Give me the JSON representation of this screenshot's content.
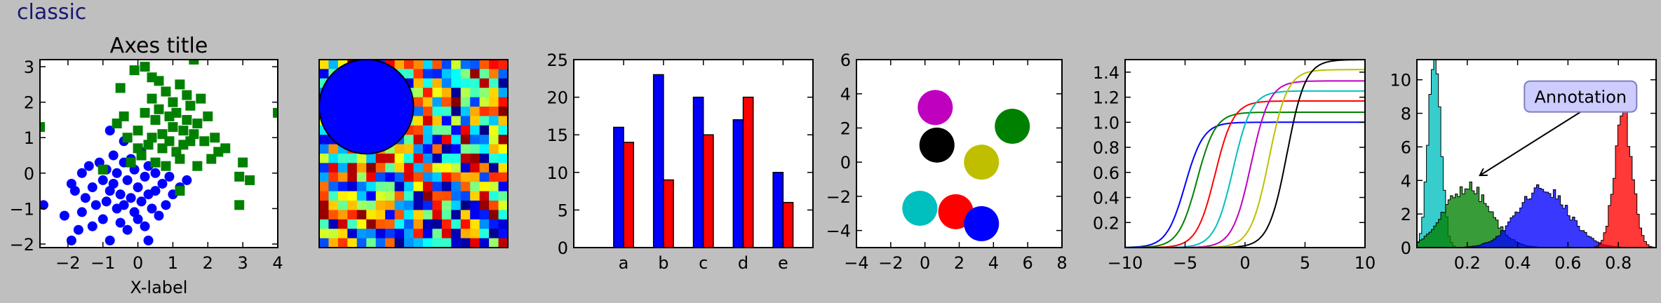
{
  "figure": {
    "title": "classic",
    "background": "#bfbfbf",
    "title_color": "#191970"
  },
  "chart_data": [
    {
      "type": "scatter",
      "title": "Axes title",
      "xlabel": "X-label",
      "ylabel": "",
      "xlim": [
        -2.8,
        4.0
      ],
      "ylim": [
        -2.1,
        3.2
      ],
      "xticks": [
        -2,
        -1,
        0,
        1,
        2,
        3,
        4
      ],
      "yticks": [
        -2,
        -1,
        0,
        1,
        2,
        3
      ],
      "series": [
        {
          "marker": "circle",
          "color": "#0000ff",
          "points": [
            [
              -2.7,
              -0.9
            ],
            [
              -2.1,
              -1.2
            ],
            [
              -1.9,
              -0.3
            ],
            [
              -1.8,
              -0.5
            ],
            [
              -1.7,
              -1.6
            ],
            [
              -1.6,
              -1.1
            ],
            [
              -1.5,
              -0.7
            ],
            [
              -1.4,
              0.2
            ],
            [
              -1.3,
              -0.4
            ],
            [
              -1.3,
              -1.5
            ],
            [
              -1.2,
              -0.9
            ],
            [
              -1.1,
              0.3
            ],
            [
              -1.0,
              -0.2
            ],
            [
              -1.0,
              -1.3
            ],
            [
              -0.9,
              0.1
            ],
            [
              -0.9,
              -0.8
            ],
            [
              -0.8,
              -0.5
            ],
            [
              -0.8,
              -1.9
            ],
            [
              -0.7,
              0.5
            ],
            [
              -0.7,
              -0.3
            ],
            [
              -0.6,
              -1.0
            ],
            [
              -0.6,
              0.0
            ],
            [
              -0.5,
              -0.6
            ],
            [
              -0.5,
              -1.4
            ],
            [
              -0.4,
              0.3
            ],
            [
              -0.4,
              -0.9
            ],
            [
              -0.3,
              -0.2
            ],
            [
              -0.3,
              -1.6
            ],
            [
              -0.2,
              0.4
            ],
            [
              -0.2,
              -0.7
            ],
            [
              -0.1,
              -1.1
            ],
            [
              -0.1,
              0.1
            ],
            [
              0.0,
              -0.4
            ],
            [
              0.0,
              -1.3
            ],
            [
              0.1,
              0.6
            ],
            [
              0.1,
              -0.8
            ],
            [
              0.2,
              -0.1
            ],
            [
              0.2,
              -1.5
            ],
            [
              0.3,
              0.2
            ],
            [
              0.3,
              -0.6
            ],
            [
              0.4,
              -1.0
            ],
            [
              0.5,
              0.0
            ],
            [
              0.5,
              -0.5
            ],
            [
              0.6,
              -1.2
            ],
            [
              0.7,
              -0.3
            ],
            [
              0.8,
              -0.9
            ],
            [
              0.9,
              -0.1
            ],
            [
              1.0,
              -0.6
            ],
            [
              1.2,
              -0.4
            ],
            [
              1.4,
              -0.2
            ],
            [
              -1.6,
              0.0
            ],
            [
              -0.8,
              1.2
            ],
            [
              -0.4,
              0.9
            ],
            [
              -1.9,
              -1.9
            ],
            [
              0.3,
              -1.9
            ]
          ]
        },
        {
          "marker": "square",
          "color": "#008000",
          "points": [
            [
              -2.8,
              1.3
            ],
            [
              -1.0,
              0.1
            ],
            [
              -0.6,
              1.4
            ],
            [
              -0.5,
              2.4
            ],
            [
              -0.3,
              1.0
            ],
            [
              -0.2,
              0.3
            ],
            [
              -0.1,
              2.9
            ],
            [
              0.0,
              1.2
            ],
            [
              0.1,
              0.5
            ],
            [
              0.2,
              3.0
            ],
            [
              0.2,
              1.7
            ],
            [
              0.3,
              0.8
            ],
            [
              0.4,
              2.1
            ],
            [
              0.4,
              1.0
            ],
            [
              0.5,
              1.5
            ],
            [
              0.5,
              0.3
            ],
            [
              0.6,
              2.6
            ],
            [
              0.6,
              1.8
            ],
            [
              0.7,
              0.7
            ],
            [
              0.7,
              1.1
            ],
            [
              0.8,
              2.3
            ],
            [
              0.8,
              0.2
            ],
            [
              0.9,
              1.6
            ],
            [
              0.9,
              0.9
            ],
            [
              1.0,
              2.0
            ],
            [
              1.0,
              1.3
            ],
            [
              1.1,
              0.6
            ],
            [
              1.1,
              1.7
            ],
            [
              1.2,
              2.5
            ],
            [
              1.2,
              0.4
            ],
            [
              1.3,
              1.2
            ],
            [
              1.3,
              0.8
            ],
            [
              1.4,
              2.2
            ],
            [
              1.4,
              1.5
            ],
            [
              1.5,
              0.9
            ],
            [
              1.5,
              1.9
            ],
            [
              1.6,
              1.1
            ],
            [
              1.7,
              1.4
            ],
            [
              1.7,
              0.2
            ],
            [
              1.8,
              2.1
            ],
            [
              1.9,
              0.9
            ],
            [
              2.0,
              1.6
            ],
            [
              2.1,
              0.4
            ],
            [
              2.2,
              1.0
            ],
            [
              2.3,
              0.6
            ],
            [
              2.5,
              0.7
            ],
            [
              2.9,
              -0.1
            ],
            [
              3.0,
              0.3
            ],
            [
              3.2,
              -0.2
            ],
            [
              2.9,
              -0.9
            ],
            [
              4.0,
              1.7
            ],
            [
              1.6,
              3.2
            ],
            [
              0.4,
              2.7
            ],
            [
              -0.4,
              1.6
            ],
            [
              1.2,
              -0.5
            ],
            [
              0.0,
              0.7
            ]
          ]
        }
      ]
    },
    {
      "type": "heatmap",
      "rows": 20,
      "cols": 20,
      "colormap": "jet",
      "circle": {
        "cx": 5,
        "cy": 5,
        "r": 5,
        "color": "#0000ff"
      }
    },
    {
      "type": "bar",
      "categories": [
        "a",
        "b",
        "c",
        "d",
        "e"
      ],
      "series": [
        {
          "color": "#0000ff",
          "values": [
            16,
            23,
            20,
            17,
            10
          ]
        },
        {
          "color": "#ff0000",
          "values": [
            14,
            9,
            15,
            20,
            6
          ]
        }
      ],
      "ylim": [
        0,
        25
      ],
      "yticks": [
        0,
        5,
        10,
        15,
        20,
        25
      ]
    },
    {
      "type": "scatter",
      "xlim": [
        -4,
        8
      ],
      "ylim": [
        -5,
        6
      ],
      "xticks": [
        -4,
        -2,
        0,
        2,
        4,
        6,
        8
      ],
      "yticks": [
        -4,
        -2,
        0,
        2,
        4,
        6
      ],
      "circles": [
        {
          "x": 0.6,
          "y": 3.2,
          "color": "#bf00bf"
        },
        {
          "x": 0.7,
          "y": 1.0,
          "color": "#000000"
        },
        {
          "x": 5.1,
          "y": 2.1,
          "color": "#008000"
        },
        {
          "x": 3.3,
          "y": 0.0,
          "color": "#bfbf00"
        },
        {
          "x": -0.3,
          "y": -2.7,
          "color": "#00bfbf"
        },
        {
          "x": 1.8,
          "y": -2.9,
          "color": "#ff0000"
        },
        {
          "x": 3.3,
          "y": -3.6,
          "color": "#0000ff"
        }
      ]
    },
    {
      "type": "line",
      "xlim": [
        -10,
        10
      ],
      "ylim": [
        0,
        1.5
      ],
      "xticks": [
        -10,
        -5,
        0,
        5,
        10
      ],
      "yticks": [
        0.2,
        0.4,
        0.6,
        0.8,
        1.0,
        1.2,
        1.4
      ],
      "series": [
        {
          "color": "#0000ff",
          "center": -5,
          "height": 1.0
        },
        {
          "color": "#008000",
          "center": -4,
          "height": 1.08
        },
        {
          "color": "#ff0000",
          "center": -2.5,
          "height": 1.17
        },
        {
          "color": "#00bfbf",
          "center": -1,
          "height": 1.25
        },
        {
          "color": "#bf00bf",
          "center": 0.5,
          "height": 1.33
        },
        {
          "color": "#bfbf00",
          "center": 2,
          "height": 1.42
        },
        {
          "color": "#000000",
          "center": 3.5,
          "height": 1.5
        }
      ]
    },
    {
      "type": "area",
      "subtype": "histogram",
      "xlim": [
        0,
        0.95
      ],
      "ylim": [
        0,
        11.2
      ],
      "xticks": [
        0.2,
        0.4,
        0.6,
        0.8
      ],
      "yticks": [
        0,
        2,
        4,
        6,
        8,
        10
      ],
      "series": [
        {
          "color": "#00bfbf",
          "center": 0.07,
          "width": 0.025,
          "peak": 11.0
        },
        {
          "color": "#008000",
          "center": 0.2,
          "width": 0.09,
          "peak": 3.6
        },
        {
          "color": "#0000ff",
          "center": 0.5,
          "width": 0.1,
          "peak": 3.5
        },
        {
          "color": "#ff0000",
          "center": 0.82,
          "width": 0.035,
          "peak": 8.0
        }
      ],
      "annotation": {
        "text": "Annotation",
        "xy": [
          0.25,
          4.3
        ],
        "text_xy": [
          0.65,
          9.0
        ]
      }
    }
  ]
}
